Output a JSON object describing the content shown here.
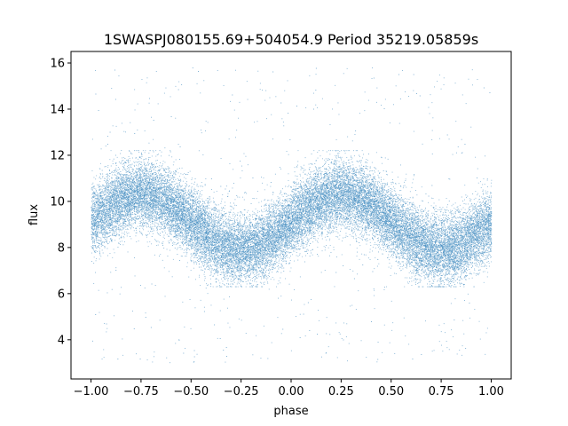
{
  "chart_data": {
    "type": "scatter",
    "title": "1SWASPJ080155.69+504054.9 Period 35219.05859s",
    "xlabel": "phase",
    "ylabel": "flux",
    "xlim": [
      -1.1,
      1.1
    ],
    "ylim": [
      2.3,
      16.5
    ],
    "x_ticks": [
      -1.0,
      -0.75,
      -0.5,
      -0.25,
      0.0,
      0.25,
      0.5,
      0.75,
      1.0
    ],
    "x_tick_labels": [
      "−1.00",
      "−0.75",
      "−0.50",
      "−0.25",
      "0.00",
      "0.25",
      "0.50",
      "0.75",
      "1.00"
    ],
    "y_ticks": [
      4,
      6,
      8,
      10,
      12,
      14,
      16
    ],
    "y_tick_labels": [
      "4",
      "6",
      "8",
      "10",
      "12",
      "14",
      "16"
    ],
    "grid": false,
    "marker_color": "#1f77b4",
    "series": [
      {
        "description_of_distribution": "phase-folded light curve; two overlapping sinusoidal bands",
        "x_range": [
          -1.0,
          1.0
        ],
        "band_a_center": {
          "amplitude": 1.2,
          "mean": 9.4,
          "peak_phase": -0.75,
          "cycles_per_unit_phase": 1
        },
        "band_b_center": {
          "amplitude": 1.2,
          "mean": 8.8,
          "peak_phase": 0.25,
          "cycles_per_unit_phase": 1
        },
        "scatter_sigma": 0.9,
        "outlier_range": [
          3.0,
          15.8
        ]
      }
    ]
  }
}
